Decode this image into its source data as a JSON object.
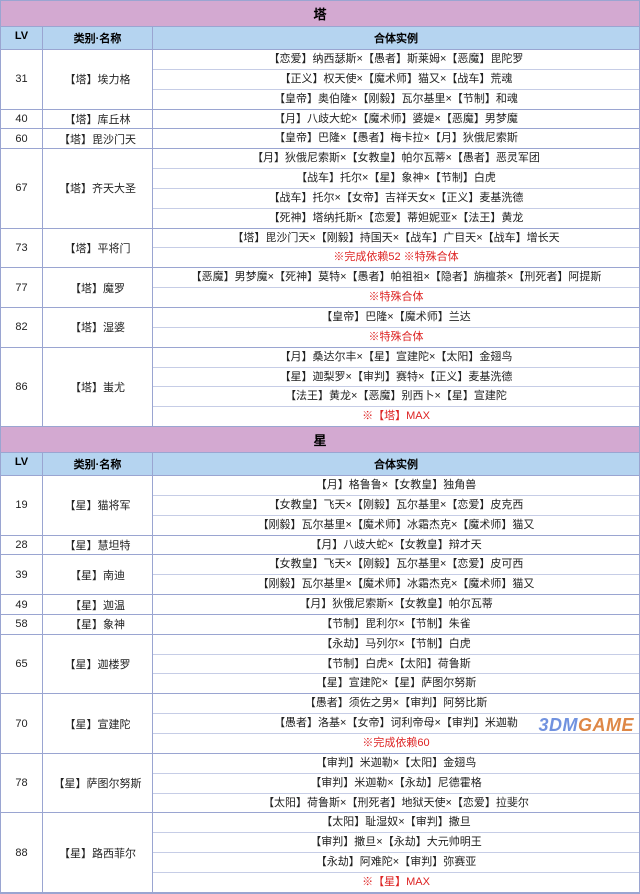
{
  "watermark": {
    "left": "3DM",
    "right": "GAME"
  },
  "columns": {
    "lv": "LV",
    "name": "类别·名称",
    "recipe": "合体实例"
  },
  "sections": [
    {
      "title": "塔",
      "header_bg": "#d3a9d1",
      "row_header_bg": "#b5d4f0",
      "entries": [
        {
          "lv": "31",
          "name": "【塔】埃力格",
          "recipes": [
            {
              "text": "【恋爱】纳西瑟斯×【愚者】斯莱姆×【恶魔】毘陀罗"
            },
            {
              "text": "【正义】权天使×【魔术师】猫又×【战车】荒魂"
            },
            {
              "text": "【皇帝】奥伯隆×【刚毅】瓦尔基里×【节制】和魂"
            }
          ]
        },
        {
          "lv": "40",
          "name": "【塔】库丘林",
          "recipes": [
            {
              "text": "【月】八歧大蛇×【魔术师】婆媞×【恶魔】男梦魔"
            }
          ]
        },
        {
          "lv": "60",
          "name": "【塔】毘沙门天",
          "recipes": [
            {
              "text": "【皇帝】巴隆×【愚者】梅卡拉×【月】狄俄尼索斯"
            }
          ]
        },
        {
          "lv": "67",
          "name": "【塔】齐天大圣",
          "recipes": [
            {
              "text": "【月】狄俄尼索斯×【女教皇】帕尔瓦蒂×【愚者】恶灵军团"
            },
            {
              "text": "【战车】托尔×【星】象神×【节制】白虎"
            },
            {
              "text": "【战车】托尔×【女帝】吉祥天女×【正义】麦基洗德"
            },
            {
              "text": "【死神】塔纳托斯×【恋爱】蒂妲妮亚×【法王】黄龙"
            }
          ]
        },
        {
          "lv": "73",
          "name": "【塔】平将门",
          "recipes": [
            {
              "text": "【塔】毘沙门天×【刚毅】持国天×【战车】广目天×【战车】增长天"
            },
            {
              "text": "※完成依赖52  ※特殊合体",
              "special": true
            }
          ]
        },
        {
          "lv": "77",
          "name": "【塔】魔罗",
          "recipes": [
            {
              "text": "【恶魔】男梦魔×【死神】莫特×【愚者】帕祖祖×【隐者】旃檀茶×【刑死者】阿提斯"
            },
            {
              "text": "※特殊合体",
              "special": true
            }
          ]
        },
        {
          "lv": "82",
          "name": "【塔】湿婆",
          "recipes": [
            {
              "text": "【皇帝】巴隆×【魔术师】兰达"
            },
            {
              "text": "※特殊合体",
              "special": true
            }
          ]
        },
        {
          "lv": "86",
          "name": "【塔】蚩尤",
          "recipes": [
            {
              "text": "【月】桑达尔丰×【星】宣建陀×【太阳】金翅鸟"
            },
            {
              "text": "【星】迦梨罗×【审判】赛特×【正义】麦基洗德"
            },
            {
              "text": "【法王】黄龙×【恶魔】别西卜×【星】宣建陀"
            },
            {
              "text": "※【塔】MAX",
              "special": true
            }
          ]
        }
      ]
    },
    {
      "title": "星",
      "header_bg": "#d3a9d1",
      "row_header_bg": "#b5d4f0",
      "entries": [
        {
          "lv": "19",
          "name": "【星】猫将军",
          "recipes": [
            {
              "text": "【月】格鲁鲁×【女教皇】独角兽"
            },
            {
              "text": "【女教皇】飞天×【刚毅】瓦尔基里×【恋爱】皮克西"
            },
            {
              "text": "【刚毅】瓦尔基里×【魔术师】冰霜杰克×【魔术师】猫又"
            }
          ]
        },
        {
          "lv": "28",
          "name": "【星】慧坦特",
          "recipes": [
            {
              "text": "【月】八歧大蛇×【女教皇】辩才天"
            }
          ]
        },
        {
          "lv": "39",
          "name": "【星】南迪",
          "recipes": [
            {
              "text": "【女教皇】飞天×【刚毅】瓦尔基里×【恋爱】皮可西"
            },
            {
              "text": "【刚毅】瓦尔基里×【魔术师】冰霜杰克×【魔术师】猫又"
            }
          ]
        },
        {
          "lv": "49",
          "name": "【星】迦温",
          "recipes": [
            {
              "text": "【月】狄俄尼索斯×【女教皇】帕尔瓦蒂"
            }
          ]
        },
        {
          "lv": "58",
          "name": "【星】象神",
          "recipes": [
            {
              "text": "【节制】毘利尔×【节制】朱雀"
            }
          ]
        },
        {
          "lv": "65",
          "name": "【星】迦楼罗",
          "recipes": [
            {
              "text": "【永劫】马列尔×【节制】白虎"
            },
            {
              "text": "【节制】白虎×【太阳】荷鲁斯"
            },
            {
              "text": "【星】宣建陀×【星】萨图尔努斯"
            }
          ]
        },
        {
          "lv": "70",
          "name": "【星】宣建陀",
          "recipes": [
            {
              "text": "【愚者】须佐之男×【审判】阿努比斯"
            },
            {
              "text": "【愚者】洛基×【女帝】诃利帝母×【审判】米迦勒"
            },
            {
              "text": "※完成依赖60",
              "special": true
            }
          ]
        },
        {
          "lv": "78",
          "name": "【星】萨图尔努斯",
          "recipes": [
            {
              "text": "【审判】米迦勒×【太阳】金翅鸟"
            },
            {
              "text": "【审判】米迦勒×【永劫】尼德霍格"
            },
            {
              "text": "【太阳】荷鲁斯×【刑死者】地狱天使×【恋爱】拉斐尔"
            }
          ]
        },
        {
          "lv": "88",
          "name": "【星】路西菲尔",
          "recipes": [
            {
              "text": "【太阳】耻湿奴×【审判】撒旦"
            },
            {
              "text": "【审判】撒旦×【永劫】大元帅明王"
            },
            {
              "text": "【永劫】阿难陀×【审判】弥赛亚"
            },
            {
              "text": "※【星】MAX",
              "special": true
            }
          ]
        }
      ]
    }
  ]
}
